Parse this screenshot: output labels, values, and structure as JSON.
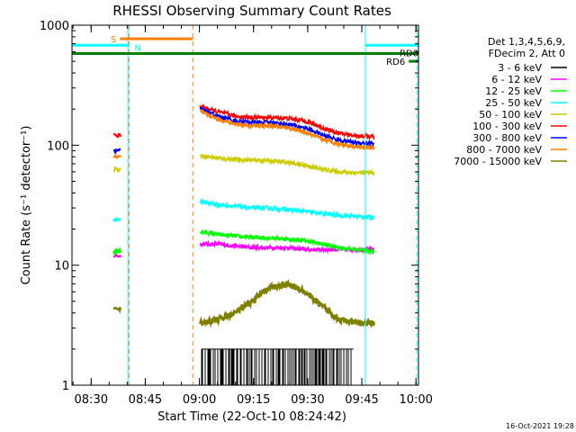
{
  "chart_data": {
    "type": "line",
    "title": "RHESSI Observing Summary Count Rates",
    "xlabel": "Start Time (22-Oct-10 08:24:42)",
    "ylabel": "Count Rate (s⁻¹ detector⁻¹)",
    "yscale": "log",
    "ylim": [
      1,
      1000
    ],
    "y_ticks": [
      {
        "value": 1,
        "label": "1"
      },
      {
        "value": 10,
        "label": "10"
      },
      {
        "value": 100,
        "label": "100"
      },
      {
        "value": 1000,
        "label": "1000"
      }
    ],
    "xlim_minutes": [
      0,
      96
    ],
    "x_ticks": [
      {
        "minute": 5.3,
        "label": "08:30"
      },
      {
        "minute": 20.3,
        "label": "08:45"
      },
      {
        "minute": 35.3,
        "label": "09:00"
      },
      {
        "minute": 50.3,
        "label": "09:15"
      },
      {
        "minute": 65.3,
        "label": "09:30"
      },
      {
        "minute": 80.3,
        "label": "09:45"
      },
      {
        "minute": 95.3,
        "label": "10:00"
      }
    ],
    "legend_header": [
      "Det 1,3,4,5,6,9,",
      "FDecim 2, Att 0"
    ],
    "legend_placement": "right",
    "series": [
      {
        "name": "3 - 6 keV",
        "color": "#000000",
        "seg1": null,
        "seg2": [
          2,
          2,
          2,
          2,
          2,
          2,
          2,
          2,
          2,
          2,
          2
        ]
      },
      {
        "name": "6 - 12 keV",
        "color": "#ff00ff",
        "seg1": 12,
        "seg2": [
          15,
          15,
          14.5,
          14,
          14,
          14,
          13.5,
          13.5,
          13.5,
          13.5,
          13.5
        ]
      },
      {
        "name": "12 - 25 keV",
        "color": "#00ff00",
        "seg1": 13,
        "seg2": [
          19,
          18,
          17.5,
          17,
          17,
          16.5,
          16,
          15,
          14,
          13.5,
          13
        ]
      },
      {
        "name": "25 - 50 keV",
        "color": "#00ffff",
        "seg1": 24,
        "seg2": [
          34,
          32,
          31,
          30,
          30,
          29,
          28,
          27,
          26,
          25.5,
          25
        ]
      },
      {
        "name": "50 - 100 keV",
        "color": "#cccc00",
        "seg1": 63,
        "seg2": [
          82,
          78,
          76,
          75,
          74,
          72,
          68,
          63,
          60,
          59,
          59
        ]
      },
      {
        "name": "100 - 300 keV",
        "color": "#ff0000",
        "seg1": 120,
        "seg2": [
          210,
          190,
          175,
          170,
          170,
          168,
          160,
          140,
          125,
          120,
          118
        ]
      },
      {
        "name": "300 - 800 keV",
        "color": "#0000ff",
        "seg1": 90,
        "seg2": [
          200,
          175,
          160,
          155,
          155,
          150,
          140,
          122,
          110,
          105,
          103
        ]
      },
      {
        "name": "800 - 7000 keV",
        "color": "#ff8000",
        "seg1": 80,
        "seg2": [
          190,
          165,
          150,
          145,
          145,
          140,
          128,
          112,
          102,
          97,
          95
        ]
      },
      {
        "name": "7000 - 15000 keV",
        "color": "#808000",
        "seg1": 4.3,
        "seg2": [
          3.3,
          3.5,
          4,
          5,
          6.5,
          7,
          6,
          4.5,
          3.5,
          3.3,
          3.3
        ]
      }
    ],
    "segment1_minutes": [
      11.5,
      13.5
    ],
    "segment2_minutes": [
      35.5,
      83.8
    ],
    "orbit_bars": [
      {
        "label": "S",
        "color": "#ff8000",
        "start": 13.3,
        "end": 33.5,
        "level": 770
      },
      {
        "label": "N",
        "color": "#00ffff",
        "start": 0,
        "end": 15.8,
        "level": 680
      },
      {
        "label": "N",
        "color": "#00ffff",
        "start": 81.3,
        "end": 96,
        "level": 680
      },
      {
        "label": "RD0",
        "color": "#008000",
        "start": 0,
        "end": 96,
        "level": 580
      },
      {
        "label": "RD6",
        "color": "#008000",
        "start": 93.3,
        "end": 96,
        "level": 500
      }
    ],
    "vertical_markers": [
      {
        "minute": 15.8,
        "color": "#ff8000",
        "style": "dashed"
      },
      {
        "minute": 33.5,
        "color": "#ff8000",
        "style": "dashed"
      },
      {
        "minute": 0,
        "color": "#00ffff",
        "style": "solid"
      },
      {
        "minute": 15.5,
        "color": "#00ffff",
        "style": "solid"
      },
      {
        "minute": 81.3,
        "color": "#00ffff",
        "style": "solid"
      },
      {
        "minute": 95.5,
        "color": "#00ffff",
        "style": "dashed"
      }
    ],
    "timestamp": "16-Oct-2021 19:28",
    "grid": false
  }
}
